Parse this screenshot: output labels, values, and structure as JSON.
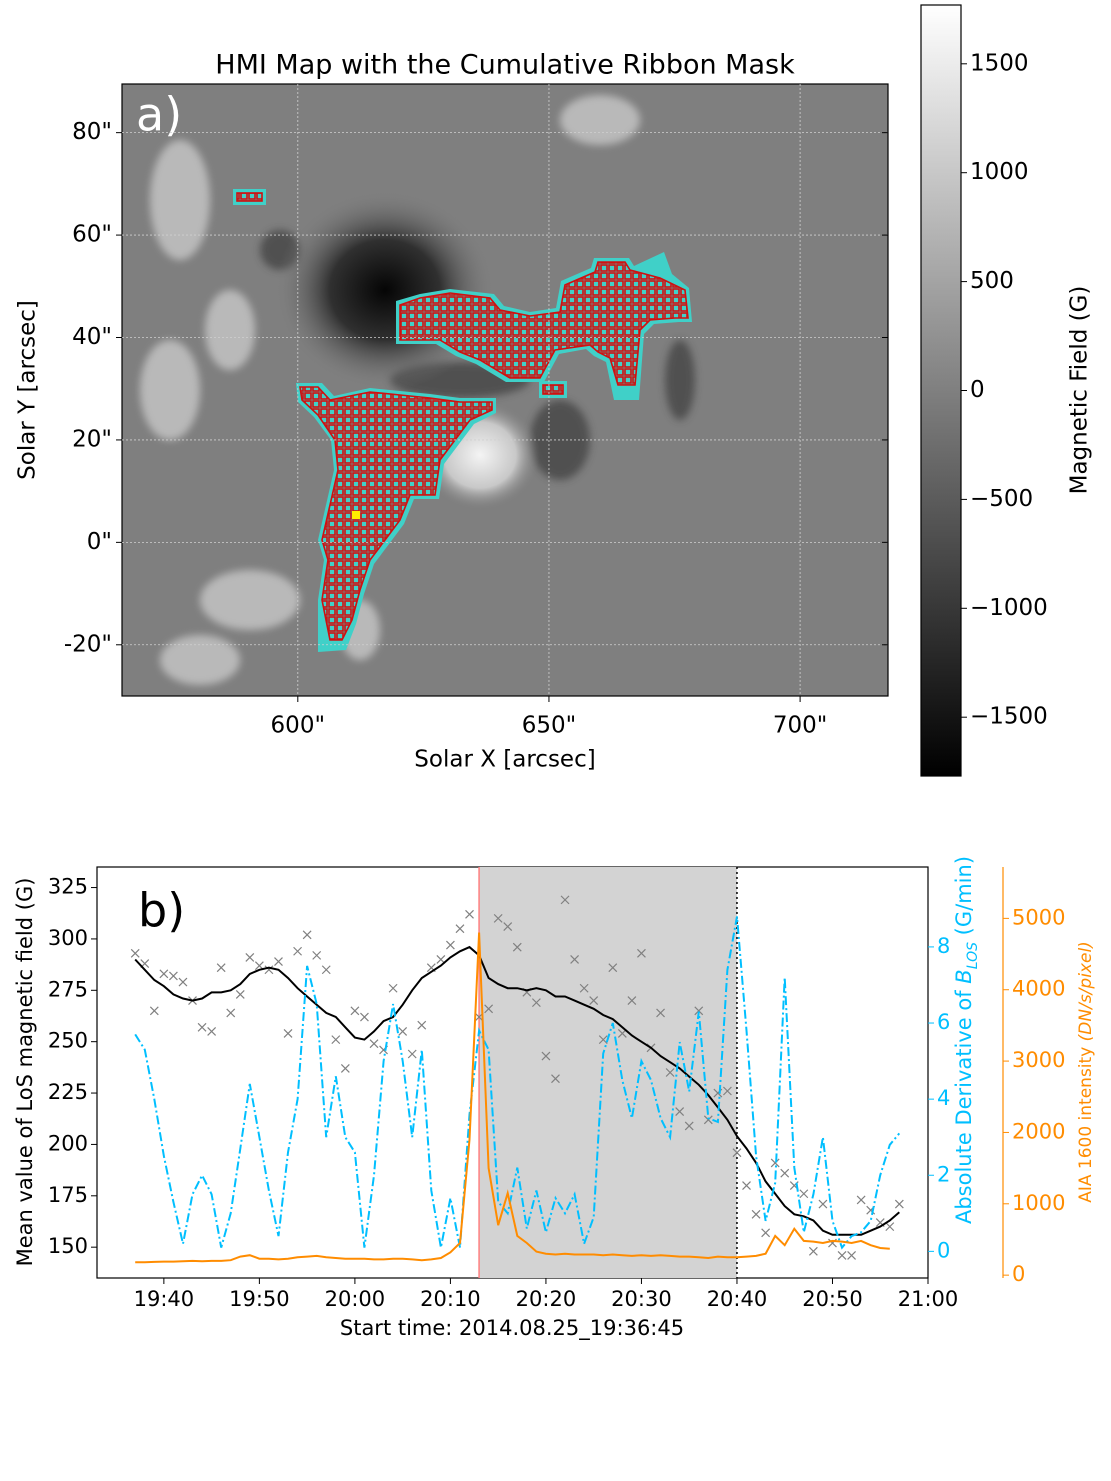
{
  "chart_data": [
    {
      "type": "image-map",
      "title": "HMI Map with the Cumulative Ribbon Mask",
      "annotation": "a)",
      "xlabel": "Solar X [arcsec]",
      "ylabel": "Solar Y [arcsec]",
      "xlim": [
        565,
        717.5
      ],
      "ylim": [
        -30,
        89.5
      ],
      "xticks": [
        {
          "value": 600,
          "label": "600\""
        },
        {
          "value": 650,
          "label": "650\""
        },
        {
          "value": 700,
          "label": "700\""
        }
      ],
      "yticks": [
        {
          "value": -20,
          "label": "-20\""
        },
        {
          "value": 0,
          "label": "0\""
        },
        {
          "value": 20,
          "label": "20\""
        },
        {
          "value": 40,
          "label": "40\""
        },
        {
          "value": 60,
          "label": "60\""
        },
        {
          "value": 80,
          "label": "80\""
        }
      ],
      "grid": true,
      "colorbar": {
        "label": "Magnetic Field (G)",
        "lim": [
          -1770,
          1770
        ],
        "ticks": [
          {
            "value": -1500,
            "label": "−1500"
          },
          {
            "value": -1000,
            "label": "−1000"
          },
          {
            "value": -500,
            "label": "−500"
          },
          0,
          500,
          1000,
          1500
        ]
      }
    },
    {
      "type": "timeseries",
      "annotation": "b)",
      "xlabel": "Start time: 2014.08.25_19:36:45",
      "ylabel": "Mean value of LoS magnetic field (G)",
      "y2label": [
        "Absolute Derivative of ",
        "B",
        "LOS",
        " (G/min)"
      ],
      "y3label": [
        "AIA 1600 intensity ",
        "(DN/s/pixel)"
      ],
      "xlim": [
        "19:33",
        "21:00"
      ],
      "xticks": [
        "19:40",
        "19:50",
        "20:00",
        "20:10",
        "20:20",
        "20:30",
        "20:40",
        "20:50",
        "21:00"
      ],
      "ylim": [
        135,
        335
      ],
      "yticks": [
        150,
        175,
        200,
        225,
        250,
        275,
        300,
        325
      ],
      "y2lim": [
        -0.7,
        10.1
      ],
      "y2ticks": [
        0,
        2,
        4,
        6,
        8
      ],
      "y2color": "#00bfff",
      "y3lim": [
        -40,
        5720
      ],
      "y3ticks": [
        0,
        1000,
        2000,
        3000,
        4000,
        5000
      ],
      "y3color": "#ff8c00",
      "shaded": {
        "from": "20:13",
        "to": "20:40",
        "color": "#d3d3d3"
      },
      "vlines": [
        {
          "x": "20:13",
          "color": "#ff8080",
          "style": "solid"
        },
        {
          "x": "20:40",
          "color": "#000000",
          "style": "dotted"
        }
      ],
      "x": [
        "19:37",
        "19:38",
        "19:39",
        "19:40",
        "19:41",
        "19:42",
        "19:43",
        "19:44",
        "19:45",
        "19:46",
        "19:47",
        "19:48",
        "19:49",
        "19:50",
        "19:51",
        "19:52",
        "19:53",
        "19:54",
        "19:55",
        "19:56",
        "19:57",
        "19:58",
        "19:59",
        "20:00",
        "20:01",
        "20:02",
        "20:03",
        "20:04",
        "20:05",
        "20:06",
        "20:07",
        "20:08",
        "20:09",
        "20:10",
        "20:11",
        "20:12",
        "20:13",
        "20:14",
        "20:15",
        "20:16",
        "20:17",
        "20:18",
        "20:19",
        "20:20",
        "20:21",
        "20:22",
        "20:23",
        "20:24",
        "20:25",
        "20:26",
        "20:27",
        "20:28",
        "20:29",
        "20:30",
        "20:31",
        "20:32",
        "20:33",
        "20:34",
        "20:35",
        "20:36",
        "20:37",
        "20:38",
        "20:39",
        "20:40",
        "20:41",
        "20:42",
        "20:43",
        "20:44",
        "20:45",
        "20:46",
        "20:47",
        "20:48",
        "20:49",
        "20:50",
        "20:51",
        "20:52",
        "20:53",
        "20:54",
        "20:55",
        "20:56",
        "20:57"
      ],
      "series": [
        {
          "kind": "scatter",
          "marker": "x",
          "color": "#808080",
          "axis": "y",
          "x": [
            "19:37",
            "19:38",
            "19:39",
            "19:40",
            "19:41",
            "19:42",
            "19:43",
            "19:44",
            "19:45",
            "19:46",
            "19:47",
            "19:48",
            "19:49",
            "19:50",
            "19:51",
            "19:52",
            "19:53",
            "19:54",
            "19:55",
            "19:56",
            "19:57",
            "19:58",
            "19:59",
            "20:00",
            "20:01",
            "20:02",
            "20:03",
            "20:04",
            "20:05",
            "20:06",
            "20:07",
            "20:08",
            "20:09",
            "20:10",
            "20:11",
            "20:12",
            "20:13",
            "20:14",
            "20:15",
            "20:16",
            "20:17",
            "20:18",
            "20:19",
            "20:20",
            "20:21",
            "20:22",
            "20:23",
            "20:24",
            "20:25",
            "20:26",
            "20:27",
            "20:28",
            "20:29",
            "20:30",
            "20:31",
            "20:32",
            "20:33",
            "20:34",
            "20:35",
            "20:36",
            "20:37",
            "20:38",
            "20:39",
            "20:40",
            "20:41",
            "20:42",
            "20:43",
            "20:44",
            "20:45",
            "20:46",
            "20:47",
            "20:48",
            "20:49",
            "20:50",
            "20:51",
            "20:52",
            "20:53",
            "20:54",
            "20:55",
            "20:56",
            "20:57"
          ],
          "values": [
            293,
            288,
            265,
            283,
            282,
            279,
            270,
            257,
            255,
            286,
            264,
            273,
            291,
            287,
            285,
            289,
            254,
            294,
            302,
            292,
            285,
            251,
            237,
            265,
            262,
            249,
            246,
            276,
            255,
            244,
            258,
            286,
            290,
            297,
            305,
            312,
            262,
            266,
            310,
            306,
            296,
            274,
            269,
            243,
            232,
            319,
            290,
            276,
            270,
            251,
            286,
            254,
            270,
            293,
            247,
            264,
            235,
            216,
            209,
            265,
            212,
            225,
            226,
            196,
            180,
            166,
            157,
            191,
            186,
            180,
            176,
            148,
            171,
            152,
            146,
            146,
            173,
            168,
            162,
            160,
            171
          ]
        },
        {
          "kind": "line",
          "linestyle": "solid",
          "color": "#000000",
          "axis": "y",
          "values": [
            290,
            285,
            280,
            277,
            273,
            271,
            270,
            271,
            274,
            274,
            275,
            278,
            283,
            285,
            286,
            285,
            281,
            276,
            272,
            268,
            264,
            262,
            257,
            252,
            251,
            255,
            260,
            262,
            268,
            275,
            281,
            284,
            287,
            291,
            294,
            296,
            292,
            281,
            278,
            276,
            276,
            275,
            276,
            275,
            272,
            272,
            270,
            268,
            266,
            263,
            261,
            257,
            253,
            250,
            247,
            243,
            240,
            237,
            233,
            229,
            224,
            218,
            212,
            204,
            198,
            191,
            182,
            176,
            170,
            166,
            165,
            163,
            158,
            156,
            156,
            156,
            156,
            158,
            160,
            163,
            167
          ]
        },
        {
          "kind": "line",
          "linestyle": "dashdot",
          "color": "#00bfff",
          "axis": "y2",
          "values": [
            5.7,
            5.3,
            4.0,
            2.5,
            1.3,
            0.2,
            1.5,
            2.0,
            1.5,
            0.1,
            1.0,
            2.7,
            4.4,
            3.0,
            1.6,
            0.4,
            2.6,
            4.0,
            7.5,
            6.5,
            3.0,
            4.6,
            3.0,
            2.6,
            0.1,
            2.0,
            5.0,
            6.5,
            5.0,
            3.0,
            5.3,
            1.6,
            0.1,
            1.4,
            0.1,
            3.6,
            5.8,
            5.3,
            1.3,
            1.0,
            2.2,
            0.6,
            1.6,
            0.5,
            1.4,
            1.0,
            1.5,
            0.2,
            0.9,
            5.2,
            6.0,
            4.5,
            3.5,
            5.0,
            4.5,
            3.5,
            3.0,
            5.5,
            4.2,
            6.3,
            3.5,
            3.4,
            7.4,
            8.8,
            5.8,
            2.5,
            0.8,
            1.8,
            7.2,
            2.2,
            0.5,
            1.5,
            3.0,
            0.8,
            0.1,
            0.4,
            0.5,
            0.8,
            2.0,
            2.8,
            3.1
          ]
        },
        {
          "kind": "line",
          "linestyle": "solid",
          "color": "#ff8c00",
          "axis": "y3",
          "values": [
            180,
            180,
            185,
            190,
            190,
            195,
            200,
            195,
            200,
            200,
            210,
            260,
            280,
            230,
            230,
            220,
            230,
            250,
            260,
            270,
            250,
            240,
            230,
            230,
            230,
            220,
            220,
            230,
            230,
            220,
            210,
            220,
            240,
            320,
            450,
            1900,
            4800,
            1500,
            700,
            1150,
            550,
            450,
            330,
            300,
            290,
            300,
            290,
            290,
            290,
            280,
            290,
            280,
            270,
            280,
            270,
            280,
            270,
            260,
            260,
            250,
            240,
            260,
            250,
            250,
            260,
            270,
            300,
            550,
            420,
            650,
            480,
            470,
            450,
            480,
            470,
            450,
            480,
            420,
            380,
            370,
            null
          ]
        }
      ]
    }
  ]
}
